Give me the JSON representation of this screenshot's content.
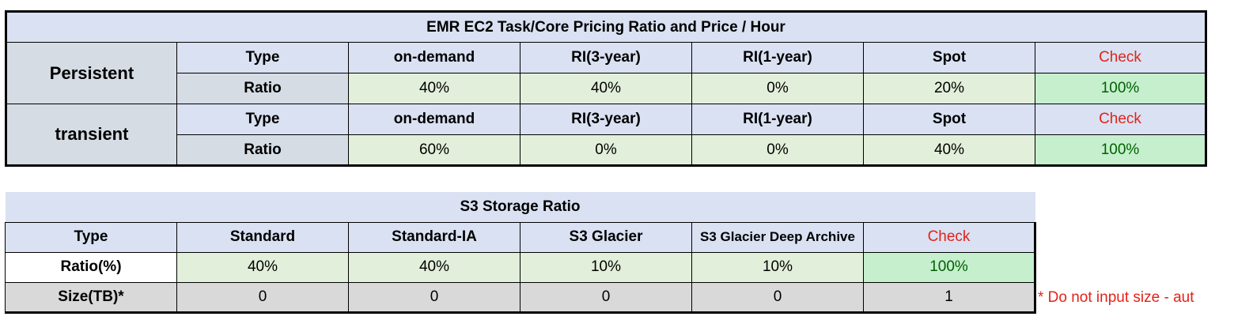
{
  "ec2": {
    "title": "EMR EC2 Task/Core Pricing Ratio and Price / Hour",
    "type_label": "Type",
    "ratio_label": "Ratio",
    "columns": [
      "on-demand",
      "RI(3-year)",
      "RI(1-year)",
      "Spot",
      "Check"
    ],
    "groups": [
      {
        "name": "Persistent",
        "ratios": [
          "40%",
          "40%",
          "0%",
          "20%"
        ],
        "check": "100%"
      },
      {
        "name": "transient",
        "ratios": [
          "60%",
          "0%",
          "0%",
          "40%"
        ],
        "check": "100%"
      }
    ]
  },
  "s3": {
    "title": "S3 Storage Ratio",
    "type_label": "Type",
    "ratio_label": "Ratio(%)",
    "size_label": "Size(TB)*",
    "columns": [
      "Standard",
      "Standard-IA",
      "S3 Glacier",
      "S3 Glacier Deep Archive",
      "Check"
    ],
    "ratios": [
      "40%",
      "40%",
      "10%",
      "10%"
    ],
    "ratio_check": "100%",
    "sizes": [
      "0",
      "0",
      "0",
      "0"
    ],
    "size_check": "1",
    "note": "* Do not input size - aut"
  },
  "colors": {
    "header_blue": "#d9e1f2",
    "label_gray": "#d6dce4",
    "input_green": "#e2efda",
    "check_green": "#c6efce",
    "check_text": "#006100",
    "warning_red": "#e2231a"
  }
}
